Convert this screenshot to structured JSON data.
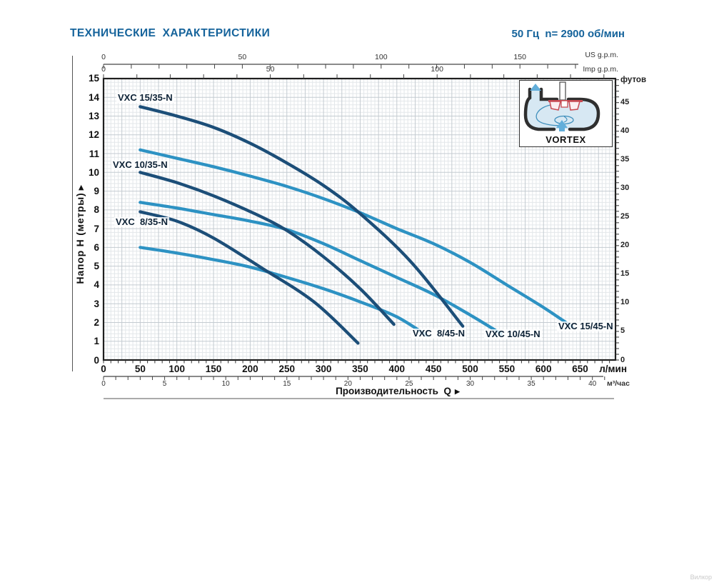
{
  "header": {
    "title": "ТЕХНИЧЕСКИЕ  ХАРАКТЕРИСТИКИ",
    "frequency": "50 Гц  n= 2900 об/мин"
  },
  "chart_data": {
    "type": "line",
    "title": "ТЕХНИЧЕСКИЕ ХАРАКТЕРИСТИКИ",
    "xlabel": "Производительность  Q",
    "ylabel": "Напор H (метры)",
    "grid": true,
    "xlim_lmin": [
      0,
      698
    ],
    "ylim_m": [
      0,
      15
    ],
    "axes": {
      "x_bottom_primary": {
        "unit": "л/мин",
        "tick_labels": [
          0,
          50,
          100,
          150,
          200,
          250,
          300,
          350,
          400,
          450,
          500,
          550,
          600,
          650
        ]
      },
      "x_bottom_secondary": {
        "unit": "м³/час",
        "tick_labels": [
          0,
          5,
          10,
          15,
          20,
          25,
          30,
          35,
          40
        ]
      },
      "x_top_us": {
        "unit": "US g.p.m.",
        "tick_labels": [
          0,
          50,
          100,
          150
        ]
      },
      "x_top_imp": {
        "unit": "Imp g.p.m.",
        "tick_labels": [
          0,
          50,
          100
        ]
      },
      "y_left": {
        "unit": "Напор H (метры)",
        "tick_labels": [
          15,
          14,
          13,
          12,
          11,
          10,
          9,
          8,
          7,
          6,
          5,
          4,
          3,
          2,
          1,
          0
        ]
      },
      "y_right": {
        "unit": "футов",
        "tick_labels": [
          45,
          40,
          35,
          30,
          25,
          20,
          15,
          10,
          5,
          0
        ]
      }
    },
    "series": [
      {
        "name": "VXC 15/35-N",
        "color": "#1c4e78",
        "points_q_lmin_h_m": [
          [
            50,
            13.5
          ],
          [
            100,
            13.0
          ],
          [
            150,
            12.4
          ],
          [
            200,
            11.55
          ],
          [
            250,
            10.5
          ],
          [
            300,
            9.3
          ],
          [
            350,
            7.8
          ],
          [
            420,
            5.2
          ],
          [
            490,
            1.8
          ]
        ]
      },
      {
        "name": "VXC 10/35-N",
        "color": "#1c4e78",
        "points_q_lmin_h_m": [
          [
            50,
            10.0
          ],
          [
            100,
            9.45
          ],
          [
            150,
            8.75
          ],
          [
            206,
            7.8
          ],
          [
            250,
            6.9
          ],
          [
            300,
            5.5
          ],
          [
            350,
            3.8
          ],
          [
            396,
            1.9
          ]
        ]
      },
      {
        "name": "VXC  8/35-N",
        "color": "#1c4e78",
        "points_q_lmin_h_m": [
          [
            50,
            7.9
          ],
          [
            100,
            7.4
          ],
          [
            150,
            6.5
          ],
          [
            216,
            4.9
          ],
          [
            287,
            3.1
          ],
          [
            347,
            0.9
          ]
        ]
      },
      {
        "name": "VXC  8/45-N",
        "color": "#2d92c3",
        "points_q_lmin_h_m": [
          [
            50,
            6.0
          ],
          [
            100,
            5.7
          ],
          [
            150,
            5.35
          ],
          [
            200,
            4.95
          ],
          [
            250,
            4.4
          ],
          [
            300,
            3.8
          ],
          [
            350,
            3.1
          ],
          [
            400,
            2.3
          ],
          [
            441,
            1.3
          ]
        ]
      },
      {
        "name": "VXC 10/45-N",
        "color": "#2d92c3",
        "points_q_lmin_h_m": [
          [
            50,
            8.4
          ],
          [
            100,
            8.1
          ],
          [
            150,
            7.75
          ],
          [
            200,
            7.4
          ],
          [
            250,
            6.95
          ],
          [
            300,
            6.2
          ],
          [
            350,
            5.3
          ],
          [
            400,
            4.4
          ],
          [
            450,
            3.5
          ],
          [
            500,
            2.4
          ],
          [
            542,
            1.4
          ]
        ]
      },
      {
        "name": "VXC 15/45-N",
        "color": "#2d92c3",
        "points_q_lmin_h_m": [
          [
            50,
            11.2
          ],
          [
            100,
            10.75
          ],
          [
            150,
            10.3
          ],
          [
            200,
            9.8
          ],
          [
            250,
            9.25
          ],
          [
            300,
            8.6
          ],
          [
            350,
            7.85
          ],
          [
            400,
            7.0
          ],
          [
            450,
            6.2
          ],
          [
            500,
            5.2
          ],
          [
            550,
            4.0
          ],
          [
            600,
            2.8
          ],
          [
            640,
            1.75
          ]
        ]
      }
    ]
  },
  "inset": {
    "label": "VORTEX"
  },
  "watermark": "Вилкор"
}
